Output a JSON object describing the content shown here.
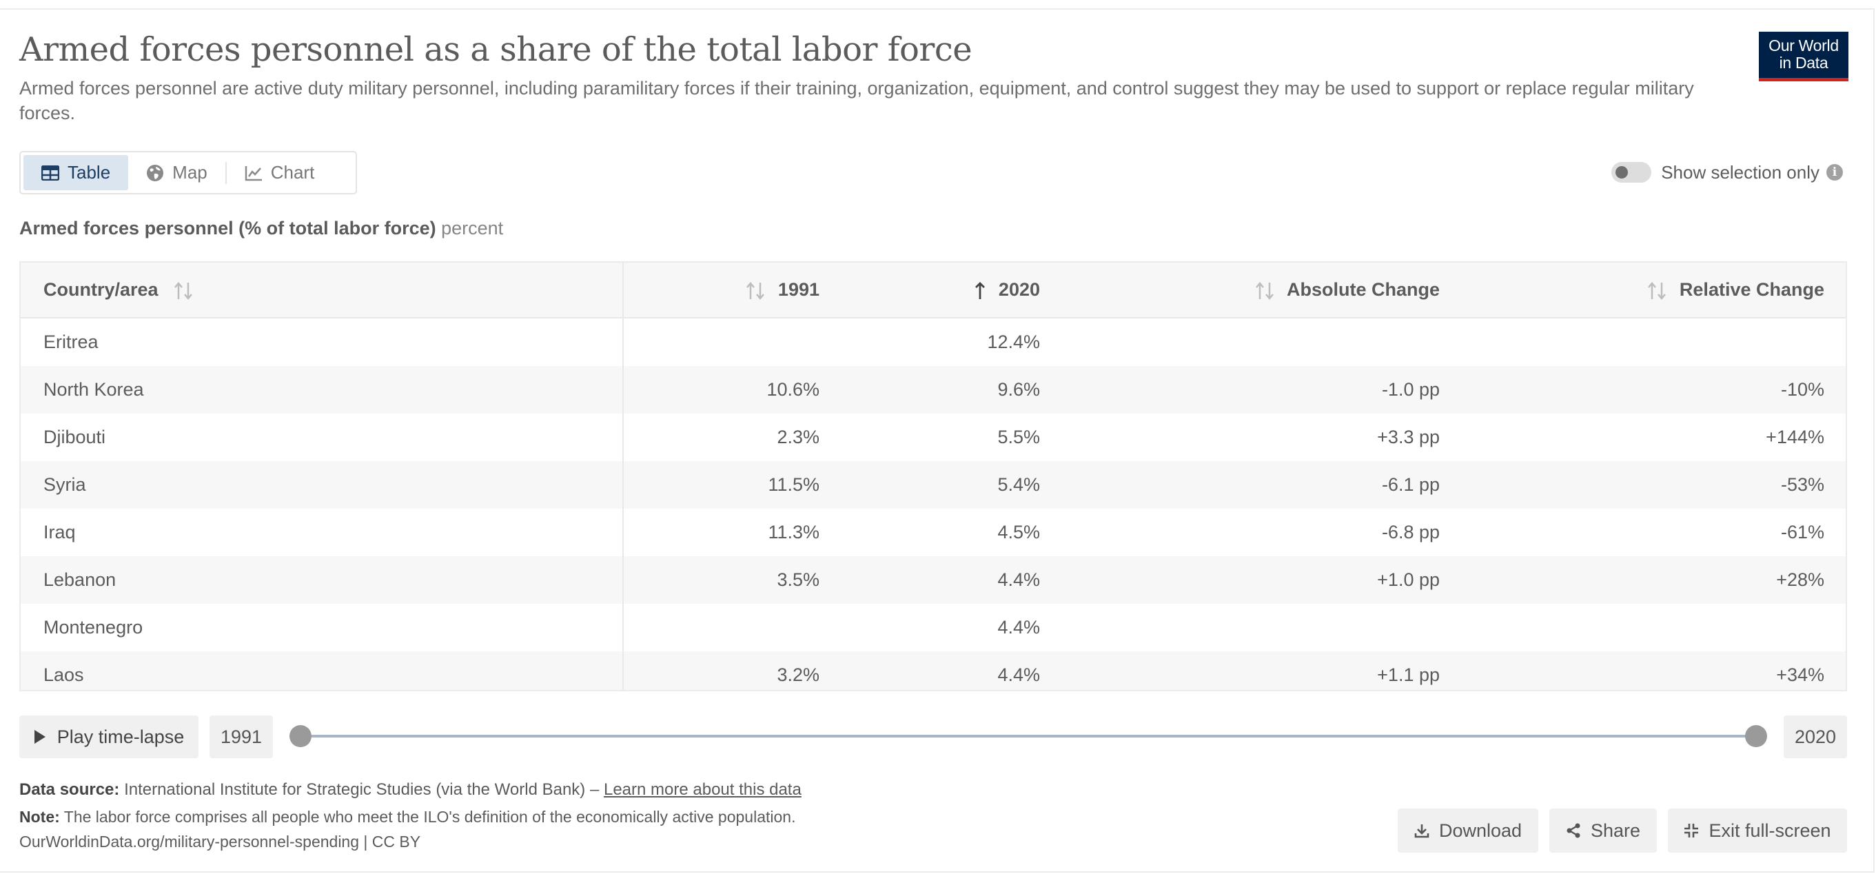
{
  "header": {
    "title": "Armed forces personnel as a share of the total labor force",
    "subtitle": "Armed forces personnel are active duty military personnel, including paramilitary forces if their training, organization, equipment, and control suggest they may be used to support or replace regular military forces.",
    "logo_line1": "Our World",
    "logo_line2": "in Data"
  },
  "tabs": [
    {
      "label": "Table",
      "icon": "table-icon",
      "active": true
    },
    {
      "label": "Map",
      "icon": "globe-icon",
      "active": false
    },
    {
      "label": "Chart",
      "icon": "line-chart-icon",
      "active": false
    }
  ],
  "toggle": {
    "label": "Show selection only",
    "on": false
  },
  "table": {
    "caption_main": "Armed forces personnel (% of total labor force)",
    "caption_unit": "percent",
    "columns": {
      "country": "Country/area",
      "start": "1991",
      "end": "2020",
      "abs": "Absolute Change",
      "rel": "Relative Change"
    },
    "sorted_column": "end",
    "rows": [
      [
        "Eritrea",
        "",
        "12.4%",
        "",
        ""
      ],
      [
        "North Korea",
        "10.6%",
        "9.6%",
        "-1.0 pp",
        "-10%"
      ],
      [
        "Djibouti",
        "2.3%",
        "5.5%",
        "+3.3 pp",
        "+144%"
      ],
      [
        "Syria",
        "11.5%",
        "5.4%",
        "-6.1 pp",
        "-53%"
      ],
      [
        "Iraq",
        "11.3%",
        "4.5%",
        "-6.8 pp",
        "-61%"
      ],
      [
        "Lebanon",
        "3.5%",
        "4.4%",
        "+1.0 pp",
        "+28%"
      ],
      [
        "Montenegro",
        "",
        "4.4%",
        "",
        ""
      ],
      [
        "Laos",
        "3.2%",
        "4.4%",
        "+1.1 pp",
        "+34%"
      ]
    ]
  },
  "timeline": {
    "play_label": "Play time-lapse",
    "start_year": "1991",
    "end_year": "2020"
  },
  "footer": {
    "source_label": "Data source:",
    "source_text": "International Institute for Strategic Studies (via the World Bank) – ",
    "source_link": "Learn more about this data",
    "note_label": "Note:",
    "note_text": "The labor force comprises all people who meet the ILO's definition of the economically active population.",
    "url_text": "OurWorldinData.org/military-personnel-spending | CC BY",
    "download_label": "Download",
    "share_label": "Share",
    "exit_label": "Exit full-screen"
  },
  "colors": {
    "brand_navy": "#002147",
    "brand_red": "#ce261e",
    "active_tab_bg": "#dbe5f0",
    "slider_track": "#a7b5c8"
  }
}
